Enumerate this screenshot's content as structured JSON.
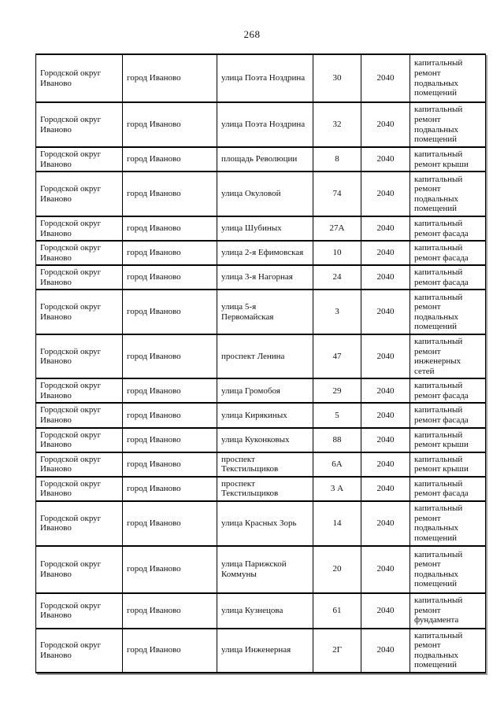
{
  "page_number": "268",
  "table": {
    "rows": [
      {
        "district": "Городской округ Иваново",
        "city": "город Иваново",
        "street": "улица Поэта Ноздрина",
        "house": "30",
        "year": "2040",
        "work": "капитальный ремонт подвальных помещений"
      },
      {
        "district": "Городской округ Иваново",
        "city": "город Иваново",
        "street": "улица Поэта Ноздрина",
        "house": "32",
        "year": "2040",
        "work": "капитальный ремонт подвальных помещений"
      },
      {
        "district": "Городской округ Иваново",
        "city": "город Иваново",
        "street": "площадь Революции",
        "house": "8",
        "year": "2040",
        "work": "капитальный ремонт крыши"
      },
      {
        "district": "Городской округ Иваново",
        "city": "город Иваново",
        "street": "улица Окуловой",
        "house": "74",
        "year": "2040",
        "work": "капитальный ремонт подвальных помещений"
      },
      {
        "district": "Городской округ Иваново",
        "city": "город Иваново",
        "street": "улица Шубиных",
        "house": "27А",
        "year": "2040",
        "work": "капитальный ремонт фасада"
      },
      {
        "district": "Городской округ Иваново",
        "city": "город Иваново",
        "street": "улица 2-я Ефимовская",
        "house": "10",
        "year": "2040",
        "work": "капитальный ремонт фасада"
      },
      {
        "district": "Городской округ Иваново",
        "city": "город Иваново",
        "street": "улица 3-я Нагорная",
        "house": "24",
        "year": "2040",
        "work": "капитальный ремонт фасада"
      },
      {
        "district": "Городской округ Иваново",
        "city": "город Иваново",
        "street": "улица 5-я Первомайская",
        "house": "3",
        "year": "2040",
        "work": "капитальный ремонт подвальных помещений"
      },
      {
        "district": "Городской округ Иваново",
        "city": "город Иваново",
        "street": "проспект Ленина",
        "house": "47",
        "year": "2040",
        "work": "капитальный ремонт инженерных сетей"
      },
      {
        "district": "Городской округ Иваново",
        "city": "город Иваново",
        "street": "улица Громобоя",
        "house": "29",
        "year": "2040",
        "work": "капитальный ремонт фасада"
      },
      {
        "district": "Городской округ Иваново",
        "city": "город Иваново",
        "street": "улица Кирякиных",
        "house": "5",
        "year": "2040",
        "work": "капитальный ремонт фасада"
      },
      {
        "district": "Городской округ Иваново",
        "city": "город Иваново",
        "street": "улица Куконковых",
        "house": "88",
        "year": "2040",
        "work": "капитальный ремонт крыши"
      },
      {
        "district": "Городской округ Иваново",
        "city": "город Иваново",
        "street": "проспект Текстильщиков",
        "house": "6А",
        "year": "2040",
        "work": "капитальный ремонт крыши"
      },
      {
        "district": "Городской округ Иваново",
        "city": "город Иваново",
        "street": "проспект Текстильщиков",
        "house": "3 А",
        "year": "2040",
        "work": "капитальный ремонт фасада"
      },
      {
        "district": "Городской округ Иваново",
        "city": "город Иваново",
        "street": "улица Красных Зорь",
        "house": "14",
        "year": "2040",
        "work": "капитальный ремонт подвальных помещений"
      },
      {
        "district": "Городской округ Иваново",
        "city": "город Иваново",
        "street": "улица Парижской Коммуны",
        "house": "20",
        "year": "2040",
        "work": "капитальный ремонт подвальных помещений"
      },
      {
        "district": "Городской округ Иваново",
        "city": "город Иваново",
        "street": "улица Кузнецова",
        "house": "61",
        "year": "2040",
        "work": "капитальный ремонт фундамента"
      },
      {
        "district": "Городской округ Иваново",
        "city": "город Иваново",
        "street": "улица Инженерная",
        "house": "2Г",
        "year": "2040",
        "work": "капитальный ремонт подвальных помещений"
      }
    ]
  }
}
